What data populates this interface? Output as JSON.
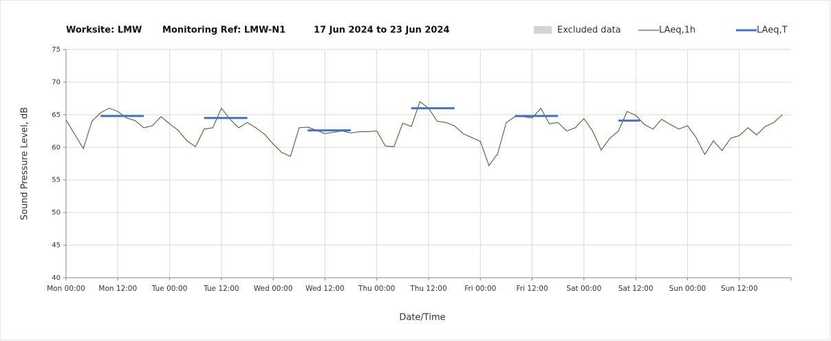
{
  "chart_data": {
    "type": "line",
    "title": [
      "Worksite: LMW",
      "Monitoring Ref: LMW-N1",
      "17 Jun 2024 to 23 Jun 2024"
    ],
    "x_label": "Date/Time",
    "y_label": "Sound Pressure Level, dB",
    "xlim": [
      0,
      168
    ],
    "ylim": [
      40,
      75
    ],
    "yticks": [
      40,
      45,
      50,
      55,
      60,
      65,
      70,
      75
    ],
    "xticks": [
      {
        "value": 0,
        "label": "Mon 00:00"
      },
      {
        "value": 12,
        "label": "Mon 12:00"
      },
      {
        "value": 24,
        "label": "Tue 00:00"
      },
      {
        "value": 36,
        "label": "Tue 12:00"
      },
      {
        "value": 48,
        "label": "Wed 00:00"
      },
      {
        "value": 60,
        "label": "Wed 12:00"
      },
      {
        "value": 72,
        "label": "Thu 00:00"
      },
      {
        "value": 84,
        "label": "Thu 12:00"
      },
      {
        "value": 96,
        "label": "Fri 00:00"
      },
      {
        "value": 108,
        "label": "Fri 12:00"
      },
      {
        "value": 120,
        "label": "Sat 00:00"
      },
      {
        "value": 132,
        "label": "Sat 12:00"
      },
      {
        "value": 144,
        "label": "Sun 00:00"
      },
      {
        "value": 156,
        "label": "Sun 12:00"
      }
    ],
    "grid": true,
    "excluded": {
      "name": "Excluded data",
      "color": "#d3d3d3"
    },
    "x": [
      0,
      2,
      4,
      6,
      8,
      10,
      12,
      14,
      16,
      18,
      20,
      22,
      24,
      26,
      28,
      30,
      32,
      34,
      36,
      38,
      40,
      42,
      44,
      46,
      48,
      50,
      52,
      54,
      56,
      58,
      60,
      62,
      64,
      66,
      68,
      70,
      72,
      74,
      76,
      78,
      80,
      82,
      84,
      86,
      88,
      90,
      92,
      94,
      96,
      98,
      100,
      102,
      104,
      106,
      108,
      110,
      112,
      114,
      116,
      118,
      120,
      122,
      124,
      126,
      128,
      130,
      132,
      134,
      136,
      138,
      140,
      142,
      144,
      146,
      148,
      150,
      152,
      154,
      156,
      158,
      160,
      162,
      164,
      166
    ],
    "series": [
      {
        "name": "LAeq,1h",
        "color": "#5b6e45",
        "values": [
          64.2,
          62.0,
          59.8,
          64.0,
          65.3,
          66.0,
          65.5,
          64.5,
          64.1,
          63.0,
          63.3,
          64.7,
          63.6,
          62.6,
          61.0,
          60.1,
          62.8,
          63.0,
          66.0,
          64.3,
          63.0,
          63.8,
          63.0,
          62.0,
          60.5,
          59.2,
          58.6,
          63.0,
          63.1,
          62.6,
          62.1,
          62.3,
          62.5,
          62.2,
          62.4,
          62.4,
          62.5,
          60.2,
          60.1,
          63.7,
          63.2,
          67.0,
          66.0,
          64.0,
          63.8,
          63.3,
          62.1,
          61.5,
          60.9,
          57.2,
          59.0,
          63.8,
          64.7,
          64.7,
          64.5,
          66.0,
          63.6,
          63.8,
          62.5,
          63.0,
          64.4,
          62.5,
          59.6,
          61.4,
          62.5,
          65.5,
          64.9,
          63.5,
          62.8,
          64.3,
          63.5,
          62.8,
          63.3,
          61.5,
          58.9,
          61.0,
          59.5,
          61.4,
          61.8,
          63.0,
          61.9,
          63.2,
          63.8,
          65.0
        ]
      },
      {
        "name": "LAeq,T",
        "color": "#4472c4",
        "segments": [
          {
            "x": [
              8,
              18
            ],
            "value": 64.8
          },
          {
            "x": [
              32,
              42
            ],
            "value": 64.5
          },
          {
            "x": [
              56,
              66
            ],
            "value": 62.6
          },
          {
            "x": [
              80,
              90
            ],
            "value": 66.0
          },
          {
            "x": [
              104,
              114
            ],
            "value": 64.8
          },
          {
            "x": [
              128,
              133
            ],
            "value": 64.1
          }
        ]
      }
    ]
  }
}
